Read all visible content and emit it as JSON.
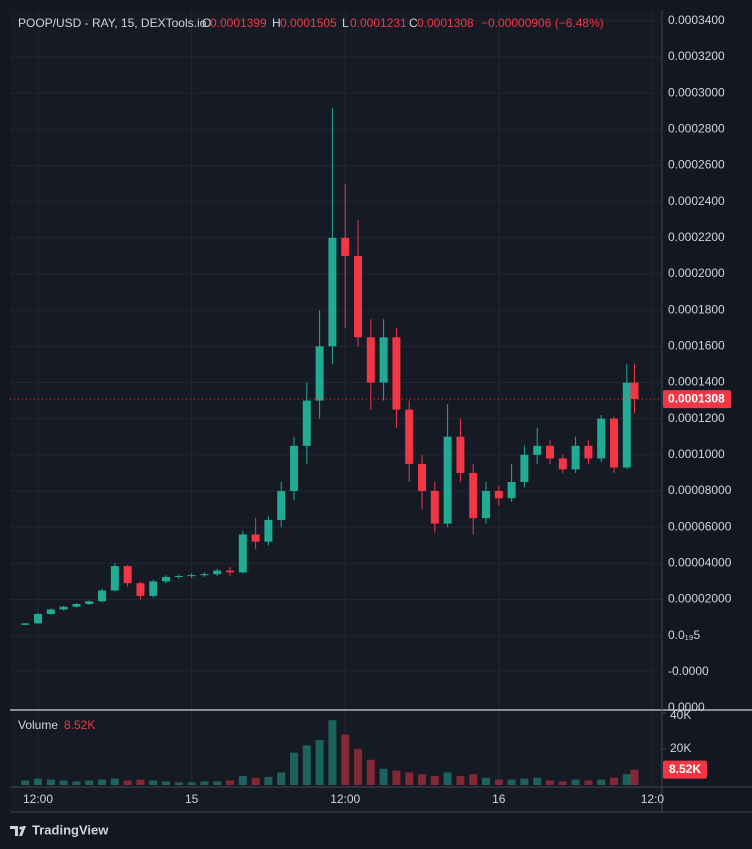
{
  "chart_data": {
    "type": "candlestick",
    "title": "POOP/USD - RAY, 15, DEXTools.io",
    "legend_labels": [
      "O",
      "H",
      "L",
      "C"
    ],
    "change_label": "−0.00000906 (−6.48%)",
    "up_color": "#22ab94",
    "down_color": "#f23645",
    "grid": true,
    "x": [
      11,
      12,
      13,
      14,
      15,
      16,
      17,
      18,
      19,
      20,
      21,
      22,
      23,
      24,
      25,
      26,
      27,
      28,
      29,
      30,
      31,
      32,
      33,
      34,
      35,
      36,
      37,
      38,
      39,
      40,
      41,
      42,
      43,
      44,
      45,
      46,
      47,
      48,
      49,
      50,
      51,
      52,
      53,
      54,
      55,
      56,
      57,
      58,
      58.6
    ],
    "open": [
      6e-06,
      6.8e-06,
      1.2e-05,
      1.45e-05,
      1.6e-05,
      1.75e-05,
      1.9e-05,
      2.5e-05,
      3.85e-05,
      2.9e-05,
      2.2e-05,
      3e-05,
      3.25e-05,
      3.3e-05,
      3.35e-05,
      3.4e-05,
      3.6e-05,
      3.5e-05,
      5.6e-05,
      5.2e-05,
      6.4e-05,
      8e-05,
      0.000105,
      0.00013,
      0.00016,
      0.00022,
      0.00021,
      0.000165,
      0.00014,
      0.000165,
      0.000125,
      9.5e-05,
      8e-05,
      6.2e-05,
      0.00011,
      9e-05,
      6.5e-05,
      8e-05,
      7.6e-05,
      8.5e-05,
      0.0001,
      0.000105,
      9.8e-05,
      9.2e-05,
      0.000105,
      9.8e-05,
      0.00012,
      9.3e-05,
      0.0001399
    ],
    "high": [
      7e-06,
      1.25e-05,
      1.5e-05,
      1.65e-05,
      1.8e-05,
      1.95e-05,
      2.6e-05,
      4e-05,
      3.9e-05,
      3e-05,
      3.1e-05,
      3.35e-05,
      3.4e-05,
      3.45e-05,
      3.5e-05,
      3.7e-05,
      3.8e-05,
      5.8e-05,
      6.5e-05,
      6.6e-05,
      8.5e-05,
      0.00011,
      0.00014,
      0.00018,
      0.000292,
      0.00025,
      0.00023,
      0.000175,
      0.000175,
      0.00017,
      0.00013,
      0.0001,
      8.5e-05,
      0.000128,
      0.00012,
      9.5e-05,
      8.5e-05,
      8.3e-05,
      9.5e-05,
      0.000105,
      0.000115,
      0.000108,
      0.0001,
      0.00011,
      0.000108,
      0.000122,
      0.000121,
      0.00015,
      0.0001505
    ],
    "low": [
      5.8e-06,
      6.6e-06,
      1.15e-05,
      1.4e-05,
      1.55e-05,
      1.7e-05,
      1.85e-05,
      2.45e-05,
      2.7e-05,
      2e-05,
      2.1e-05,
      2.9e-05,
      3.15e-05,
      3.2e-05,
      3.25e-05,
      3.3e-05,
      3.3e-05,
      3.45e-05,
      4.8e-05,
      5e-05,
      6e-05,
      7.5e-05,
      9.5e-05,
      0.00012,
      0.00015,
      0.00017,
      0.00016,
      0.000125,
      0.00013,
      0.000115,
      8.5e-05,
      7e-05,
      5.7e-05,
      6e-05,
      8.5e-05,
      5.6e-05,
      6.2e-05,
      7.2e-05,
      7.4e-05,
      8.2e-05,
      9.5e-05,
      9.5e-05,
      9e-05,
      9e-05,
      9.5e-05,
      9.6e-05,
      9e-05,
      9.2e-05,
      0.0001231
    ],
    "close": [
      6.8e-06,
      1.2e-05,
      1.45e-05,
      1.6e-05,
      1.75e-05,
      1.9e-05,
      2.5e-05,
      3.85e-05,
      2.9e-05,
      2.2e-05,
      3e-05,
      3.25e-05,
      3.3e-05,
      3.35e-05,
      3.4e-05,
      3.6e-05,
      3.5e-05,
      5.6e-05,
      5.2e-05,
      6.4e-05,
      8e-05,
      0.000105,
      0.00013,
      0.00016,
      0.00022,
      0.00021,
      0.000165,
      0.00014,
      0.000165,
      0.000125,
      9.5e-05,
      8e-05,
      6.2e-05,
      0.00011,
      9e-05,
      6.5e-05,
      8e-05,
      7.6e-05,
      8.5e-05,
      0.0001,
      0.000105,
      9.8e-05,
      9.2e-05,
      0.000105,
      9.8e-05,
      0.00012,
      9.3e-05,
      0.0001399,
      0.0001308
    ],
    "volume": [
      2500,
      3500,
      3000,
      2500,
      2000,
      2500,
      3000,
      3500,
      2500,
      3000,
      2500,
      2000,
      1500,
      1500,
      2000,
      2000,
      2500,
      5000,
      4000,
      4500,
      7000,
      18000,
      22000,
      25000,
      36000,
      28000,
      20000,
      14000,
      9000,
      8000,
      7000,
      6000,
      5000,
      7000,
      5000,
      6000,
      4000,
      3000,
      3000,
      3500,
      4000,
      2500,
      2000,
      3000,
      2500,
      3000,
      4000,
      6000,
      8520
    ],
    "volume_title": "Volume",
    "volume_label": "8.52K",
    "xlim": [
      9.81,
      60.75
    ],
    "xticks": [
      {
        "value": 12,
        "label": "12:00"
      },
      {
        "value": 24,
        "label": "15"
      },
      {
        "value": 36,
        "label": "12:00"
      },
      {
        "value": 48,
        "label": "16"
      },
      {
        "value": 60,
        "label": "12:0"
      }
    ],
    "ylim": [
      -4e-05,
      0.000346
    ],
    "yticks": [
      {
        "value": 0.00034,
        "label": "0.0003400"
      },
      {
        "value": 0.00032,
        "label": "0.0003200"
      },
      {
        "value": 0.0003,
        "label": "0.0003000"
      },
      {
        "value": 0.00028,
        "label": "0.0002800"
      },
      {
        "value": 0.00026,
        "label": "0.0002600"
      },
      {
        "value": 0.00024,
        "label": "0.0002400"
      },
      {
        "value": 0.00022,
        "label": "0.0002200"
      },
      {
        "value": 0.0002,
        "label": "0.0002000"
      },
      {
        "value": 0.00018,
        "label": "0.0001800"
      },
      {
        "value": 0.00016,
        "label": "0.0001600"
      },
      {
        "value": 0.00014,
        "label": "0.0001400"
      },
      {
        "value": 0.00012,
        "label": "0.0001200"
      },
      {
        "value": 0.0001,
        "label": "0.0001000"
      },
      {
        "value": 8e-05,
        "label": "0.00008000"
      },
      {
        "value": 6e-05,
        "label": "0.00006000"
      },
      {
        "value": 4e-05,
        "label": "0.00004000"
      },
      {
        "value": 2e-05,
        "label": "0.00002000"
      },
      {
        "value": 0,
        "label": "0.0₁₉5"
      },
      {
        "value": -2e-05,
        "label": "-0.0000"
      },
      {
        "value": -4e-05,
        "label": "0.0000"
      }
    ],
    "volume_ylim": [
      0,
      40000
    ],
    "volume_yticks": [
      {
        "value": 40000,
        "label": "40K"
      },
      {
        "value": 20000,
        "label": "20K"
      }
    ]
  },
  "footer": {
    "brand": "TradingView"
  }
}
